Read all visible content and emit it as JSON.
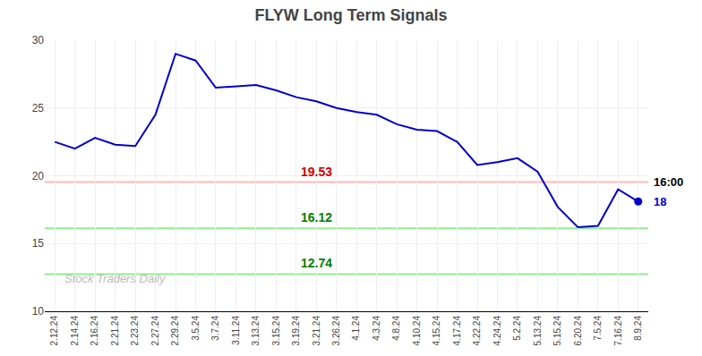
{
  "chart_data": {
    "type": "line",
    "title": "FLYW Long Term Signals",
    "categories": [
      "2.12.24",
      "2.14.24",
      "2.16.24",
      "2.21.24",
      "2.23.24",
      "2.27.24",
      "2.29.24",
      "3.5.24",
      "3.7.24",
      "3.11.24",
      "3.13.24",
      "3.15.24",
      "3.19.24",
      "3.21.24",
      "3.26.24",
      "4.1.24",
      "4.3.24",
      "4.8.24",
      "4.10.24",
      "4.15.24",
      "4.17.24",
      "4.22.24",
      "4.24.24",
      "5.2.24",
      "5.13.24",
      "5.15.24",
      "6.20.24",
      "7.5.24",
      "7.16.24",
      "8.9.24"
    ],
    "values": [
      22.5,
      22.0,
      22.8,
      22.3,
      22.2,
      24.5,
      29.0,
      28.5,
      26.5,
      26.6,
      26.7,
      26.3,
      25.8,
      25.5,
      25.0,
      24.7,
      24.5,
      23.8,
      23.4,
      23.3,
      22.5,
      20.8,
      21.0,
      21.3,
      20.3,
      17.7,
      16.2,
      16.3,
      19.0,
      18.1
    ],
    "color": "#0000cc",
    "marker": "circle",
    "ylim": [
      10,
      30
    ],
    "yticks": [
      10,
      15,
      20,
      25,
      30
    ],
    "grid": true,
    "hlines": [
      {
        "value": 19.53,
        "label": "19.53",
        "color": "#ffb6b6",
        "label_color": "#cc0000"
      },
      {
        "value": 16.12,
        "label": "16.12",
        "color": "#90ee90",
        "label_color": "#008000"
      },
      {
        "value": 12.74,
        "label": "12.74",
        "color": "#90ee90",
        "label_color": "#008000"
      }
    ],
    "annotations": [
      {
        "text": "16:00",
        "y": 19.53,
        "color": "#000000"
      },
      {
        "text": "18",
        "y": 18.1,
        "color": "#0000cc"
      }
    ],
    "watermark": "Stock Traders Daily"
  }
}
